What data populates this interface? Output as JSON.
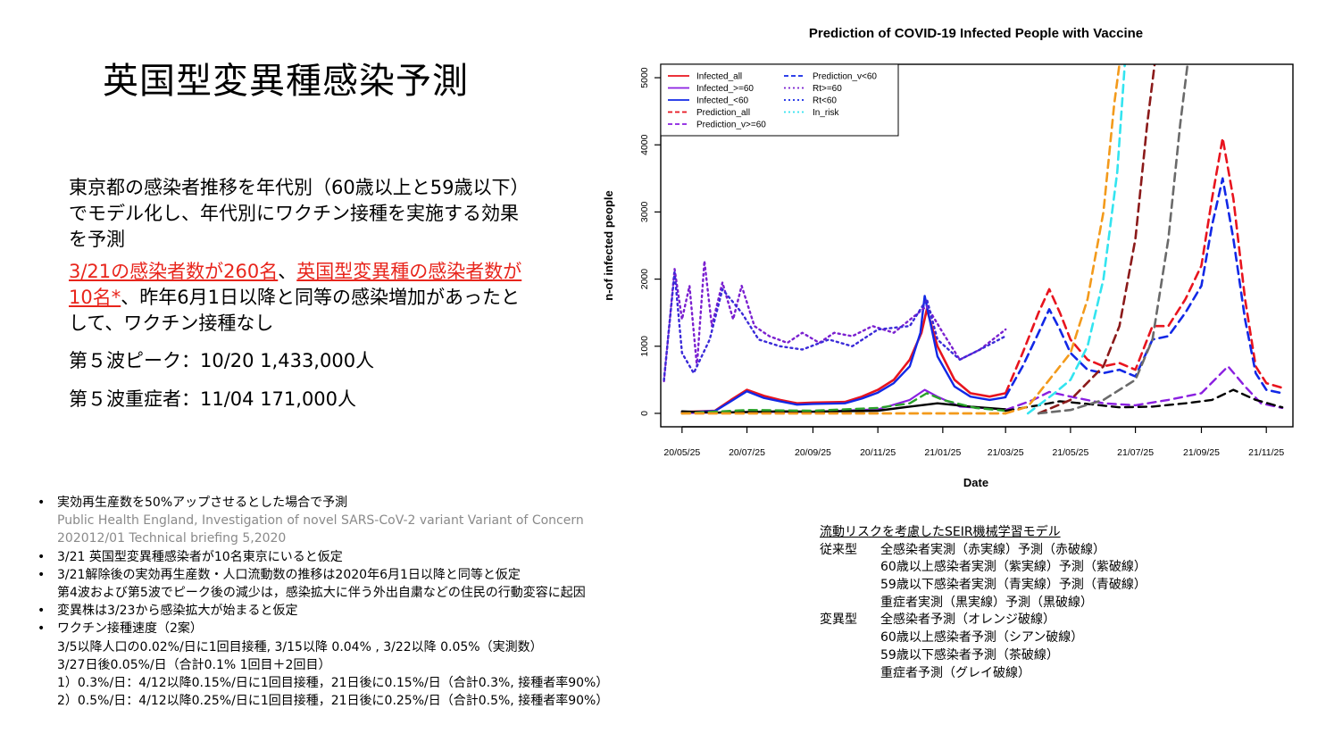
{
  "slide": {
    "title": "英国型変異種感染予測",
    "para1": "東京都の感染者推移を年代別（60歳以上と59歳以下）でモデル化し、年代別にワクチン接種を実施する効果を予測",
    "para2_red1": "3/21の感染者数が260名",
    "para2_sep": "、",
    "para2_red2": "英国型変異種の感染者数が10名*",
    "para2_rest": "、昨年6月1日以降と同等の感染増加があったとして、ワクチン接種なし",
    "peak5": "第５波ピーク：10/20 1,433,000人",
    "severe5": "第５波重症者：11/04 171,000人"
  },
  "notes": {
    "b1": "実効再生産数を50%アップさせるとした場合で予測",
    "b1_src1": "Public Health England, Investigation of novel SARS-CoV-2 variant Variant of Concern",
    "b1_src2": "202012/01 Technical briefing 5,2020",
    "b2": "3/21 英国型変異種感染者が10名東京にいると仮定",
    "b3": "3/21解除後の実効再生産数・人口流動数の推移は2020年6月1日以降と同等と仮定",
    "b3_sub": "第4波および第5波でピーク後の減少は，感染拡大に伴う外出自粛などの住民の行動変容に起因",
    "b4": "変異株は3/23から感染拡大が始まると仮定",
    "b5": "ワクチン接種速度（2案）",
    "b5_s1": "3/5以降人口の0.02%/日に1回目接種, 3/15以降 0.04% , 3/22以降 0.05%（実測数）",
    "b5_s2": "3/27日後0.05%/日（合計0.1% 1回目＋2回目）",
    "b5_s3": "1）0.3%/日：4/12以降0.15%/日に1回目接種，21日後に0.15%/日（合計0.3%, 接種者率90%）",
    "b5_s4": "2）0.5%/日：4/12以降0.25%/日に1回目接種，21日後に0.25%/日（合計0.5%, 接種者率90%）"
  },
  "model_legend": {
    "heading": "流動リスクを考慮したSEIR機械学習モデル",
    "rows": [
      {
        "k": "従来型",
        "v": "全感染者実測（赤実線）予測（赤破線）"
      },
      {
        "k": "",
        "v": "60歳以上感染者実測（紫実線）予測（紫破線）"
      },
      {
        "k": "",
        "v": "59歳以下感染者実測（青実線）予測（青破線）"
      },
      {
        "k": "",
        "v": "重症者実測（黒実線）予測（黒破線）"
      },
      {
        "k": "変異型",
        "v": "全感染者予測（オレンジ破線）"
      },
      {
        "k": "",
        "v": "60歳以上感染者予測（シアン破線）"
      },
      {
        "k": "",
        "v": "59歳以下感染者予測（茶破線）"
      },
      {
        "k": "",
        "v": "重症者予測（グレイ破線）"
      }
    ]
  },
  "chart_data": {
    "type": "line",
    "title": "Prediction of COVID-19 Infected People with Vaccine",
    "xlabel": "Date",
    "ylabel": "n-of infected people",
    "xlim": [
      "2020-05-05",
      "2021-12-20"
    ],
    "ylim": [
      -200,
      5200
    ],
    "x_ticks": [
      "2020-05-25",
      "2020-07-25",
      "2020-09-25",
      "2020-11-25",
      "2021-01-25",
      "2021-03-25",
      "2021-05-25",
      "2021-07-25",
      "2021-09-25",
      "2021-11-25"
    ],
    "x_tick_labels": [
      "20/05/25",
      "20/07/25",
      "20/09/25",
      "20/11/25",
      "21/01/25",
      "21/03/25",
      "21/05/25",
      "21/07/25",
      "21/09/25",
      "21/11/25"
    ],
    "y_ticks": [
      0,
      1000,
      2000,
      3000,
      4000,
      5000
    ],
    "legend": {
      "position": "top-left",
      "col1": [
        "Infected_all",
        "Infected_>=60",
        "Infected_<60",
        "Prediction_all",
        "Prediction_v>=60"
      ],
      "col2": [
        "Prediction_v<60",
        "Rt>=60",
        "Rt<60",
        "In_risk"
      ]
    },
    "colors": {
      "red": "#e8141e",
      "purple": "#8a1fe0",
      "blue": "#1228e6",
      "black": "#000000",
      "green": "#2aa22a",
      "orange": "#f39a1b",
      "cyan": "#33e4f0",
      "brown": "#8b1a1a",
      "gray": "#6a6a6a",
      "rt_purple": "#7a1fd0",
      "rt_blue": "#3a2ad8"
    },
    "series": [
      {
        "key": "inf_all",
        "color": "red",
        "style": "solid",
        "width": 2.6,
        "points": [
          [
            "2020-05-25",
            20
          ],
          [
            "2020-06-25",
            40
          ],
          [
            "2020-07-10",
            200
          ],
          [
            "2020-07-25",
            350
          ],
          [
            "2020-08-10",
            260
          ],
          [
            "2020-08-25",
            200
          ],
          [
            "2020-09-10",
            150
          ],
          [
            "2020-09-25",
            160
          ],
          [
            "2020-10-25",
            170
          ],
          [
            "2020-11-10",
            250
          ],
          [
            "2020-11-25",
            350
          ],
          [
            "2020-12-10",
            500
          ],
          [
            "2020-12-25",
            800
          ],
          [
            "2021-01-05",
            1200
          ],
          [
            "2021-01-10",
            1550
          ],
          [
            "2021-01-20",
            1000
          ],
          [
            "2021-02-05",
            500
          ],
          [
            "2021-02-20",
            300
          ],
          [
            "2021-03-10",
            250
          ],
          [
            "2021-03-25",
            300
          ]
        ]
      },
      {
        "key": "inf_ge60",
        "color": "purple",
        "style": "solid",
        "width": 2.2,
        "points": [
          [
            "2020-05-25",
            5
          ],
          [
            "2020-07-25",
            20
          ],
          [
            "2020-09-25",
            25
          ],
          [
            "2020-11-25",
            60
          ],
          [
            "2020-12-25",
            200
          ],
          [
            "2021-01-08",
            350
          ],
          [
            "2021-01-20",
            250
          ],
          [
            "2021-02-10",
            100
          ],
          [
            "2021-03-25",
            60
          ]
        ]
      },
      {
        "key": "inf_lt60",
        "color": "blue",
        "style": "solid",
        "width": 2.4,
        "points": [
          [
            "2020-05-25",
            15
          ],
          [
            "2020-06-25",
            35
          ],
          [
            "2020-07-10",
            180
          ],
          [
            "2020-07-25",
            330
          ],
          [
            "2020-08-10",
            230
          ],
          [
            "2020-08-25",
            180
          ],
          [
            "2020-09-10",
            130
          ],
          [
            "2020-09-25",
            140
          ],
          [
            "2020-10-25",
            150
          ],
          [
            "2020-11-10",
            220
          ],
          [
            "2020-11-25",
            310
          ],
          [
            "2020-12-10",
            450
          ],
          [
            "2020-12-25",
            700
          ],
          [
            "2021-01-04",
            1200
          ],
          [
            "2021-01-08",
            1750
          ],
          [
            "2021-01-20",
            850
          ],
          [
            "2021-02-05",
            400
          ],
          [
            "2021-02-20",
            250
          ],
          [
            "2021-03-10",
            200
          ],
          [
            "2021-03-25",
            240
          ]
        ]
      },
      {
        "key": "severe",
        "color": "black",
        "style": "solid",
        "width": 2.4,
        "points": [
          [
            "2020-05-25",
            30
          ],
          [
            "2020-06-25",
            10
          ],
          [
            "2020-07-25",
            20
          ],
          [
            "2020-08-25",
            30
          ],
          [
            "2020-09-25",
            25
          ],
          [
            "2020-11-25",
            40
          ],
          [
            "2020-12-25",
            100
          ],
          [
            "2021-01-20",
            150
          ],
          [
            "2021-02-20",
            100
          ],
          [
            "2021-03-25",
            60
          ]
        ]
      },
      {
        "key": "rt_ge60",
        "color": "rt_purple",
        "style": "dotted",
        "width": 2.4,
        "points": [
          [
            "2020-05-08",
            480
          ],
          [
            "2020-05-18",
            2150
          ],
          [
            "2020-05-25",
            1400
          ],
          [
            "2020-06-01",
            1900
          ],
          [
            "2020-06-08",
            700
          ],
          [
            "2020-06-15",
            2270
          ],
          [
            "2020-06-22",
            1300
          ],
          [
            "2020-07-02",
            1950
          ],
          [
            "2020-07-12",
            1400
          ],
          [
            "2020-07-20",
            1900
          ],
          [
            "2020-08-01",
            1300
          ],
          [
            "2020-08-15",
            1150
          ],
          [
            "2020-09-01",
            1050
          ],
          [
            "2020-09-15",
            1200
          ],
          [
            "2020-10-01",
            1050
          ],
          [
            "2020-10-15",
            1200
          ],
          [
            "2020-11-01",
            1150
          ],
          [
            "2020-11-20",
            1300
          ],
          [
            "2020-12-10",
            1200
          ],
          [
            "2021-01-10",
            1600
          ],
          [
            "2021-01-25",
            1200
          ],
          [
            "2021-02-10",
            800
          ],
          [
            "2021-03-01",
            950
          ],
          [
            "2021-03-25",
            1250
          ]
        ]
      },
      {
        "key": "rt_lt60",
        "color": "rt_blue",
        "style": "dotted",
        "width": 2.4,
        "points": [
          [
            "2020-05-08",
            500
          ],
          [
            "2020-05-18",
            2100
          ],
          [
            "2020-05-25",
            900
          ],
          [
            "2020-06-05",
            600
          ],
          [
            "2020-06-20",
            1100
          ],
          [
            "2020-07-02",
            1850
          ],
          [
            "2020-07-20",
            1500
          ],
          [
            "2020-08-05",
            1100
          ],
          [
            "2020-08-25",
            1000
          ],
          [
            "2020-09-15",
            950
          ],
          [
            "2020-10-10",
            1100
          ],
          [
            "2020-11-01",
            1000
          ],
          [
            "2020-11-25",
            1250
          ],
          [
            "2020-12-25",
            1300
          ],
          [
            "2021-01-10",
            1700
          ],
          [
            "2021-01-20",
            1100
          ],
          [
            "2021-02-10",
            800
          ],
          [
            "2021-03-01",
            950
          ],
          [
            "2021-03-25",
            1150
          ]
        ]
      },
      {
        "key": "in_risk",
        "color": "green",
        "style": "dashed",
        "width": 2.4,
        "points": [
          [
            "2020-05-25",
            0
          ],
          [
            "2020-07-25",
            50
          ],
          [
            "2020-09-25",
            40
          ],
          [
            "2020-11-25",
            80
          ],
          [
            "2020-12-25",
            150
          ],
          [
            "2021-01-10",
            300
          ],
          [
            "2021-01-25",
            200
          ],
          [
            "2021-02-25",
            80
          ],
          [
            "2021-03-25",
            40
          ]
        ]
      },
      {
        "key": "pred_all",
        "color": "red",
        "style": "dashed",
        "width": 2.6,
        "points": [
          [
            "2021-03-25",
            300
          ],
          [
            "2021-04-10",
            900
          ],
          [
            "2021-04-25",
            1500
          ],
          [
            "2021-05-05",
            1850
          ],
          [
            "2021-05-15",
            1500
          ],
          [
            "2021-05-25",
            1100
          ],
          [
            "2021-06-10",
            800
          ],
          [
            "2021-06-25",
            700
          ],
          [
            "2021-07-10",
            750
          ],
          [
            "2021-07-25",
            650
          ],
          [
            "2021-08-10",
            1300
          ],
          [
            "2021-08-25",
            1300
          ],
          [
            "2021-09-10",
            1700
          ],
          [
            "2021-09-25",
            2200
          ],
          [
            "2021-10-05",
            3200
          ],
          [
            "2021-10-15",
            4100
          ],
          [
            "2021-10-25",
            3200
          ],
          [
            "2021-11-05",
            1700
          ],
          [
            "2021-11-15",
            700
          ],
          [
            "2021-11-25",
            450
          ],
          [
            "2021-12-10",
            380
          ]
        ]
      },
      {
        "key": "pred_lt60",
        "color": "blue",
        "style": "dashed",
        "width": 2.6,
        "points": [
          [
            "2021-03-25",
            250
          ],
          [
            "2021-04-10",
            700
          ],
          [
            "2021-04-25",
            1200
          ],
          [
            "2021-05-05",
            1550
          ],
          [
            "2021-05-15",
            1250
          ],
          [
            "2021-05-25",
            900
          ],
          [
            "2021-06-10",
            650
          ],
          [
            "2021-06-25",
            600
          ],
          [
            "2021-07-10",
            650
          ],
          [
            "2021-07-25",
            550
          ],
          [
            "2021-08-10",
            1100
          ],
          [
            "2021-08-25",
            1150
          ],
          [
            "2021-09-10",
            1500
          ],
          [
            "2021-09-25",
            1900
          ],
          [
            "2021-10-05",
            2800
          ],
          [
            "2021-10-15",
            3500
          ],
          [
            "2021-10-25",
            2600
          ],
          [
            "2021-11-05",
            1400
          ],
          [
            "2021-11-15",
            600
          ],
          [
            "2021-11-25",
            350
          ],
          [
            "2021-12-10",
            300
          ]
        ]
      },
      {
        "key": "pred_ge60",
        "color": "purple",
        "style": "dashed",
        "width": 2.4,
        "points": [
          [
            "2021-03-25",
            50
          ],
          [
            "2021-04-20",
            200
          ],
          [
            "2021-05-05",
            320
          ],
          [
            "2021-05-25",
            250
          ],
          [
            "2021-06-25",
            150
          ],
          [
            "2021-07-25",
            120
          ],
          [
            "2021-08-25",
            200
          ],
          [
            "2021-09-25",
            300
          ],
          [
            "2021-10-20",
            700
          ],
          [
            "2021-11-05",
            400
          ],
          [
            "2021-11-20",
            150
          ],
          [
            "2021-12-10",
            80
          ]
        ]
      },
      {
        "key": "pred_severe",
        "color": "black",
        "style": "dashed",
        "width": 2.4,
        "points": [
          [
            "2021-03-25",
            40
          ],
          [
            "2021-04-25",
            120
          ],
          [
            "2021-05-15",
            180
          ],
          [
            "2021-06-10",
            140
          ],
          [
            "2021-07-10",
            90
          ],
          [
            "2021-08-10",
            100
          ],
          [
            "2021-09-10",
            150
          ],
          [
            "2021-10-05",
            200
          ],
          [
            "2021-10-25",
            350
          ],
          [
            "2021-11-15",
            200
          ],
          [
            "2021-12-10",
            90
          ]
        ]
      },
      {
        "key": "var_all",
        "color": "orange",
        "style": "dashed",
        "width": 2.6,
        "points": [
          [
            "2021-03-25",
            0
          ],
          [
            "2021-04-15",
            100
          ],
          [
            "2021-05-05",
            500
          ],
          [
            "2021-05-25",
            900
          ],
          [
            "2021-06-10",
            1700
          ],
          [
            "2021-06-25",
            3000
          ],
          [
            "2021-07-05",
            4600
          ],
          [
            "2021-07-10",
            5200
          ]
        ]
      },
      {
        "key": "var_ge60",
        "color": "cyan",
        "style": "dashed",
        "width": 2.6,
        "points": [
          [
            "2021-04-15",
            0
          ],
          [
            "2021-05-10",
            300
          ],
          [
            "2021-05-25",
            500
          ],
          [
            "2021-06-10",
            1000
          ],
          [
            "2021-06-25",
            2000
          ],
          [
            "2021-07-08",
            3600
          ],
          [
            "2021-07-15",
            5200
          ]
        ]
      },
      {
        "key": "var_lt60",
        "color": "brown",
        "style": "dashed",
        "width": 2.6,
        "points": [
          [
            "2021-04-25",
            0
          ],
          [
            "2021-05-25",
            200
          ],
          [
            "2021-06-25",
            700
          ],
          [
            "2021-07-10",
            1300
          ],
          [
            "2021-07-25",
            2600
          ],
          [
            "2021-08-05",
            4300
          ],
          [
            "2021-08-12",
            5200
          ]
        ]
      },
      {
        "key": "var_severe",
        "color": "gray",
        "style": "dashed",
        "width": 2.6,
        "points": [
          [
            "2021-04-25",
            0
          ],
          [
            "2021-05-25",
            50
          ],
          [
            "2021-06-25",
            200
          ],
          [
            "2021-07-25",
            500
          ],
          [
            "2021-08-10",
            1100
          ],
          [
            "2021-08-25",
            2600
          ],
          [
            "2021-09-05",
            4300
          ],
          [
            "2021-09-12",
            5200
          ]
        ]
      },
      {
        "key": "flat_orange",
        "color": "orange",
        "style": "dashed",
        "width": 2.8,
        "points": [
          [
            "2020-05-25",
            0
          ],
          [
            "2021-03-25",
            0
          ]
        ]
      }
    ]
  }
}
